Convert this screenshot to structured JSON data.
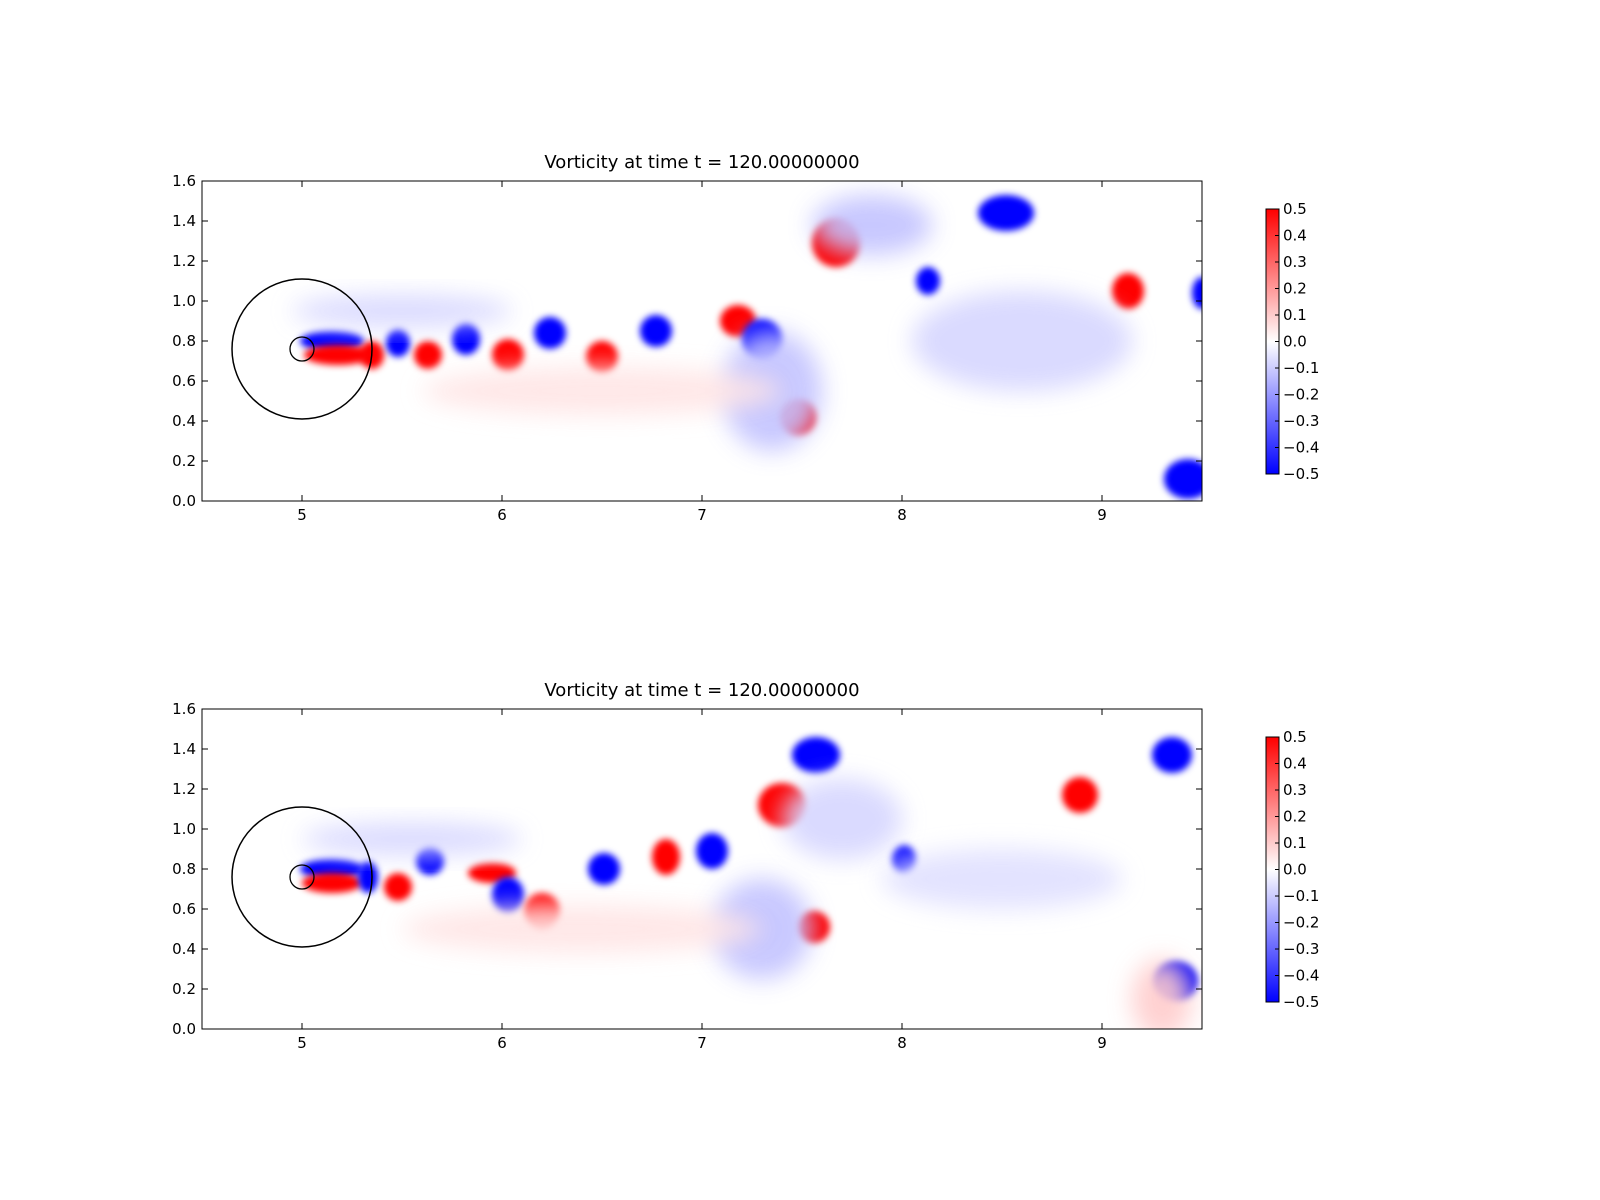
{
  "chart_data": [
    {
      "type": "heatmap",
      "title": "Vorticity at time t =   120.00000000",
      "xlabel": "",
      "ylabel": "",
      "xlim": [
        4.5,
        9.5
      ],
      "ylim": [
        0.0,
        1.6
      ],
      "x_ticks": [
        "5",
        "6",
        "7",
        "8",
        "9"
      ],
      "y_ticks": [
        "0.0",
        "0.2",
        "0.4",
        "0.6",
        "0.8",
        "1.0",
        "1.2",
        "1.4",
        "1.6"
      ],
      "grid": false,
      "colormap": {
        "name": "bwr",
        "low_color": "#0000ff",
        "mid_color": "#ffffff",
        "high_color": "#ff0000",
        "range": [
          -0.5,
          0.5
        ],
        "tick_labels": [
          "0.5",
          "0.4",
          "0.3",
          "0.2",
          "0.1",
          "0.0",
          "−0.1",
          "−0.2",
          "−0.3",
          "−0.4",
          "−0.5"
        ]
      },
      "body": {
        "center": [
          5.0,
          0.76
        ],
        "radius": 0.06
      },
      "ring": {
        "center": [
          5.0,
          0.76
        ],
        "radius": 0.35
      },
      "vortices": [
        {
          "x": 5.15,
          "y": 0.8,
          "v": -0.5,
          "rx": 0.16,
          "ry": 0.05
        },
        {
          "x": 5.18,
          "y": 0.73,
          "v": 0.5,
          "rx": 0.17,
          "ry": 0.05
        },
        {
          "x": 5.35,
          "y": 0.73,
          "v": 0.5,
          "rx": 0.06,
          "ry": 0.07
        },
        {
          "x": 5.48,
          "y": 0.79,
          "v": -0.5,
          "rx": 0.06,
          "ry": 0.07
        },
        {
          "x": 5.63,
          "y": 0.73,
          "v": 0.5,
          "rx": 0.07,
          "ry": 0.07
        },
        {
          "x": 5.82,
          "y": 0.81,
          "v": -0.5,
          "rx": 0.07,
          "ry": 0.08
        },
        {
          "x": 6.03,
          "y": 0.73,
          "v": 0.5,
          "rx": 0.08,
          "ry": 0.08
        },
        {
          "x": 6.24,
          "y": 0.84,
          "v": -0.5,
          "rx": 0.08,
          "ry": 0.08
        },
        {
          "x": 6.5,
          "y": 0.72,
          "v": 0.5,
          "rx": 0.08,
          "ry": 0.08
        },
        {
          "x": 6.77,
          "y": 0.85,
          "v": -0.5,
          "rx": 0.08,
          "ry": 0.08
        },
        {
          "x": 7.18,
          "y": 0.9,
          "v": 0.5,
          "rx": 0.09,
          "ry": 0.08
        },
        {
          "x": 7.3,
          "y": 0.81,
          "v": -0.5,
          "rx": 0.1,
          "ry": 0.1
        },
        {
          "x": 7.48,
          "y": 0.42,
          "v": 0.5,
          "rx": 0.09,
          "ry": 0.09
        },
        {
          "x": 7.67,
          "y": 1.29,
          "v": 0.5,
          "rx": 0.12,
          "ry": 0.12
        },
        {
          "x": 8.13,
          "y": 1.1,
          "v": -0.5,
          "rx": 0.06,
          "ry": 0.07
        },
        {
          "x": 8.52,
          "y": 1.44,
          "v": -0.5,
          "rx": 0.14,
          "ry": 0.09
        },
        {
          "x": 9.13,
          "y": 1.05,
          "v": 0.5,
          "rx": 0.08,
          "ry": 0.09
        },
        {
          "x": 9.5,
          "y": 1.04,
          "v": -0.5,
          "rx": 0.05,
          "ry": 0.08
        },
        {
          "x": 9.43,
          "y": 0.11,
          "v": -0.5,
          "rx": 0.12,
          "ry": 0.1
        },
        {
          "x": 7.35,
          "y": 0.55,
          "v": -0.12,
          "rx": 0.25,
          "ry": 0.3
        },
        {
          "x": 7.85,
          "y": 1.38,
          "v": -0.12,
          "rx": 0.3,
          "ry": 0.15
        },
        {
          "x": 8.6,
          "y": 0.8,
          "v": -0.08,
          "rx": 0.55,
          "ry": 0.25
        },
        {
          "x": 5.5,
          "y": 0.95,
          "v": -0.08,
          "rx": 0.55,
          "ry": 0.08
        },
        {
          "x": 6.5,
          "y": 0.55,
          "v": 0.05,
          "rx": 0.9,
          "ry": 0.12
        }
      ]
    },
    {
      "type": "heatmap",
      "title": "Vorticity at time t =   120.00000000",
      "xlabel": "",
      "ylabel": "",
      "xlim": [
        4.5,
        9.5
      ],
      "ylim": [
        0.0,
        1.6
      ],
      "x_ticks": [
        "5",
        "6",
        "7",
        "8",
        "9"
      ],
      "y_ticks": [
        "0.0",
        "0.2",
        "0.4",
        "0.6",
        "0.8",
        "1.0",
        "1.2",
        "1.4",
        "1.6"
      ],
      "grid": false,
      "colormap": {
        "name": "bwr",
        "low_color": "#0000ff",
        "mid_color": "#ffffff",
        "high_color": "#ff0000",
        "range": [
          -0.5,
          0.5
        ],
        "tick_labels": [
          "0.5",
          "0.4",
          "0.3",
          "0.2",
          "0.1",
          "0.0",
          "−0.1",
          "−0.2",
          "−0.3",
          "−0.4",
          "−0.5"
        ]
      },
      "body": {
        "center": [
          5.0,
          0.76
        ],
        "radius": 0.06
      },
      "ring": {
        "center": [
          5.0,
          0.76
        ],
        "radius": 0.35
      },
      "vortices": [
        {
          "x": 5.15,
          "y": 0.8,
          "v": -0.5,
          "rx": 0.16,
          "ry": 0.05
        },
        {
          "x": 5.15,
          "y": 0.73,
          "v": 0.5,
          "rx": 0.15,
          "ry": 0.05
        },
        {
          "x": 5.33,
          "y": 0.76,
          "v": -0.5,
          "rx": 0.05,
          "ry": 0.08
        },
        {
          "x": 5.48,
          "y": 0.71,
          "v": 0.5,
          "rx": 0.07,
          "ry": 0.07
        },
        {
          "x": 5.64,
          "y": 0.84,
          "v": -0.5,
          "rx": 0.07,
          "ry": 0.07
        },
        {
          "x": 5.95,
          "y": 0.78,
          "v": 0.5,
          "rx": 0.12,
          "ry": 0.05
        },
        {
          "x": 6.03,
          "y": 0.67,
          "v": -0.5,
          "rx": 0.08,
          "ry": 0.09
        },
        {
          "x": 6.2,
          "y": 0.59,
          "v": 0.5,
          "rx": 0.09,
          "ry": 0.09
        },
        {
          "x": 6.51,
          "y": 0.8,
          "v": -0.5,
          "rx": 0.08,
          "ry": 0.08
        },
        {
          "x": 6.82,
          "y": 0.86,
          "v": 0.5,
          "rx": 0.07,
          "ry": 0.09
        },
        {
          "x": 7.05,
          "y": 0.89,
          "v": -0.5,
          "rx": 0.08,
          "ry": 0.09
        },
        {
          "x": 7.4,
          "y": 1.12,
          "v": 0.5,
          "rx": 0.12,
          "ry": 0.11
        },
        {
          "x": 7.56,
          "y": 0.51,
          "v": 0.5,
          "rx": 0.08,
          "ry": 0.08
        },
        {
          "x": 7.57,
          "y": 1.37,
          "v": -0.5,
          "rx": 0.12,
          "ry": 0.09
        },
        {
          "x": 8.01,
          "y": 0.85,
          "v": -0.5,
          "rx": 0.06,
          "ry": 0.07
        },
        {
          "x": 8.89,
          "y": 1.17,
          "v": 0.5,
          "rx": 0.09,
          "ry": 0.09
        },
        {
          "x": 9.35,
          "y": 1.37,
          "v": -0.5,
          "rx": 0.1,
          "ry": 0.09
        },
        {
          "x": 9.37,
          "y": 0.24,
          "v": -0.5,
          "rx": 0.11,
          "ry": 0.1
        },
        {
          "x": 7.3,
          "y": 0.5,
          "v": -0.12,
          "rx": 0.25,
          "ry": 0.25
        },
        {
          "x": 7.7,
          "y": 1.05,
          "v": -0.08,
          "rx": 0.3,
          "ry": 0.2
        },
        {
          "x": 8.5,
          "y": 0.75,
          "v": -0.06,
          "rx": 0.6,
          "ry": 0.15
        },
        {
          "x": 5.55,
          "y": 0.95,
          "v": -0.08,
          "rx": 0.55,
          "ry": 0.08
        },
        {
          "x": 6.4,
          "y": 0.5,
          "v": 0.05,
          "rx": 0.9,
          "ry": 0.12
        },
        {
          "x": 9.3,
          "y": 0.15,
          "v": 0.1,
          "rx": 0.15,
          "ry": 0.2
        }
      ]
    }
  ]
}
